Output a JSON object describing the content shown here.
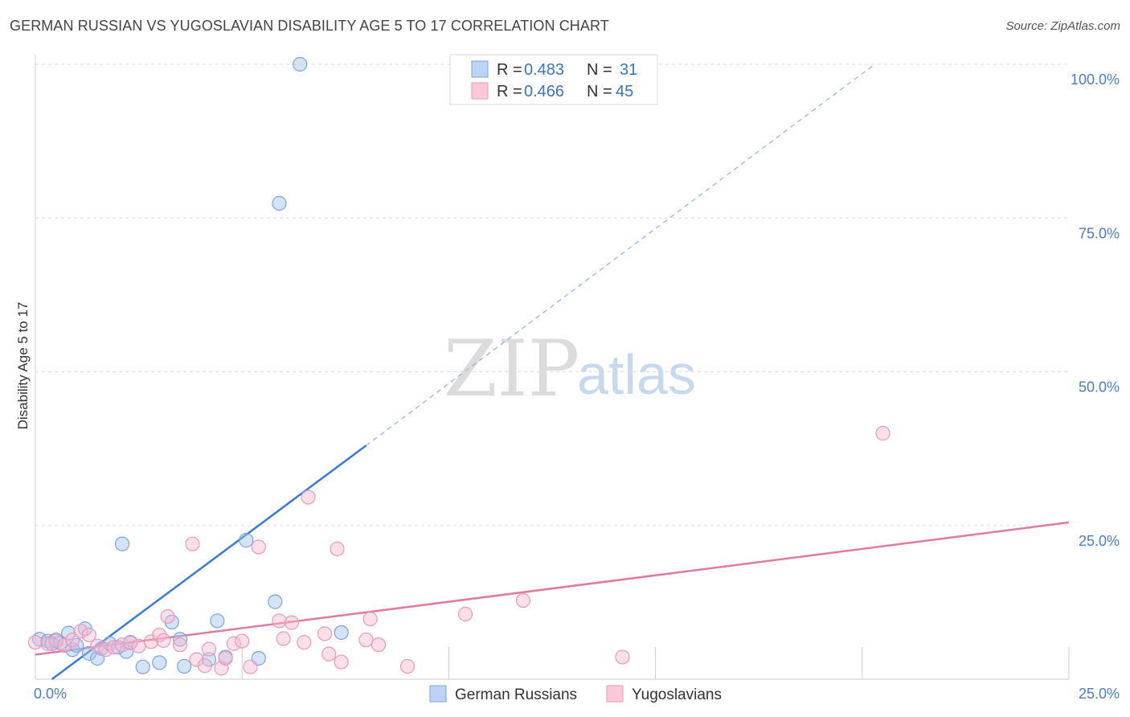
{
  "header": {
    "title": "GERMAN RUSSIAN VS YUGOSLAVIAN DISABILITY AGE 5 TO 17 CORRELATION CHART",
    "source": "Source: ZipAtlas.com"
  },
  "watermark": {
    "zip": "ZIP",
    "atlas": "atlas"
  },
  "legend": {
    "r_label": "R =",
    "n_label": "N =",
    "entries": [
      {
        "r": "0.483",
        "n": "31"
      },
      {
        "r": "0.466",
        "n": "45"
      }
    ]
  },
  "chart_data": {
    "type": "scatter",
    "title": "GERMAN RUSSIAN VS YUGOSLAVIAN DISABILITY AGE 5 TO 17 CORRELATION CHART",
    "ylabel": "Disability Age 5 to 17",
    "xlabel": "",
    "xlim": [
      0,
      25
    ],
    "ylim": [
      0,
      100
    ],
    "x_tick_labels": [
      "0.0%",
      "25.0%"
    ],
    "y_tick_labels": [
      "100.0%",
      "75.0%",
      "50.0%",
      "25.0%"
    ],
    "y_ticks": [
      100,
      75,
      50,
      25
    ],
    "grid": true,
    "colors": {
      "german_russians": "#3a7bd5",
      "yugoslavians": "#e07aa0"
    },
    "series": [
      {
        "name": "German Russians",
        "points": [
          [
            0.1,
            6.5
          ],
          [
            0.3,
            6.2
          ],
          [
            0.4,
            5.8
          ],
          [
            0.5,
            6.4
          ],
          [
            0.6,
            5.9
          ],
          [
            0.8,
            7.5
          ],
          [
            0.9,
            4.8
          ],
          [
            1.0,
            5.5
          ],
          [
            1.2,
            8.2
          ],
          [
            1.3,
            4.2
          ],
          [
            1.5,
            3.4
          ],
          [
            1.6,
            5.0
          ],
          [
            1.8,
            5.8
          ],
          [
            2.0,
            5.2
          ],
          [
            2.1,
            22.0
          ],
          [
            2.2,
            4.5
          ],
          [
            2.3,
            6.0
          ],
          [
            2.6,
            2.0
          ],
          [
            3.0,
            2.7
          ],
          [
            3.3,
            9.3
          ],
          [
            3.5,
            6.5
          ],
          [
            3.6,
            2.1
          ],
          [
            4.2,
            3.2
          ],
          [
            4.4,
            9.5
          ],
          [
            4.6,
            3.6
          ],
          [
            5.1,
            22.6
          ],
          [
            5.4,
            3.4
          ],
          [
            5.8,
            12.6
          ],
          [
            5.9,
            77.4
          ],
          [
            6.4,
            100.0
          ],
          [
            7.4,
            7.6
          ]
        ],
        "trend": {
          "x0": 0.4,
          "y0": 0.0,
          "x1": 8.0,
          "y1": 38.0,
          "x_dash_end": 20.3,
          "y_dash_end": 100.0
        }
      },
      {
        "name": "Yugoslavians",
        "points": [
          [
            0.0,
            6.0
          ],
          [
            0.3,
            5.8
          ],
          [
            0.5,
            6.2
          ],
          [
            0.7,
            5.5
          ],
          [
            0.9,
            6.4
          ],
          [
            1.1,
            7.8
          ],
          [
            1.3,
            7.2
          ],
          [
            1.5,
            5.4
          ],
          [
            1.7,
            4.8
          ],
          [
            1.9,
            5.2
          ],
          [
            2.1,
            5.6
          ],
          [
            2.3,
            5.9
          ],
          [
            2.5,
            5.4
          ],
          [
            2.8,
            6.1
          ],
          [
            3.0,
            7.2
          ],
          [
            3.1,
            6.3
          ],
          [
            3.2,
            10.2
          ],
          [
            3.5,
            5.6
          ],
          [
            3.8,
            22.0
          ],
          [
            3.9,
            3.2
          ],
          [
            4.1,
            2.2
          ],
          [
            4.2,
            4.9
          ],
          [
            4.5,
            1.8
          ],
          [
            4.6,
            3.4
          ],
          [
            4.8,
            5.8
          ],
          [
            5.0,
            6.2
          ],
          [
            5.2,
            2.0
          ],
          [
            5.4,
            21.5
          ],
          [
            5.9,
            9.5
          ],
          [
            6.0,
            6.6
          ],
          [
            6.2,
            9.2
          ],
          [
            6.5,
            6.0
          ],
          [
            6.6,
            29.6
          ],
          [
            7.0,
            7.4
          ],
          [
            7.1,
            4.1
          ],
          [
            7.3,
            21.2
          ],
          [
            7.4,
            2.8
          ],
          [
            8.0,
            6.4
          ],
          [
            8.1,
            9.8
          ],
          [
            8.3,
            5.6
          ],
          [
            9.0,
            2.1
          ],
          [
            10.4,
            10.6
          ],
          [
            11.8,
            12.8
          ],
          [
            14.2,
            3.6
          ],
          [
            20.5,
            40.0
          ]
        ],
        "trend": {
          "x0": 0.0,
          "y0": 4.0,
          "x1": 25.0,
          "y1": 25.5
        }
      }
    ]
  },
  "bottom_legend": {
    "items": [
      {
        "label": "German Russians"
      },
      {
        "label": "Yugoslavians"
      }
    ]
  }
}
